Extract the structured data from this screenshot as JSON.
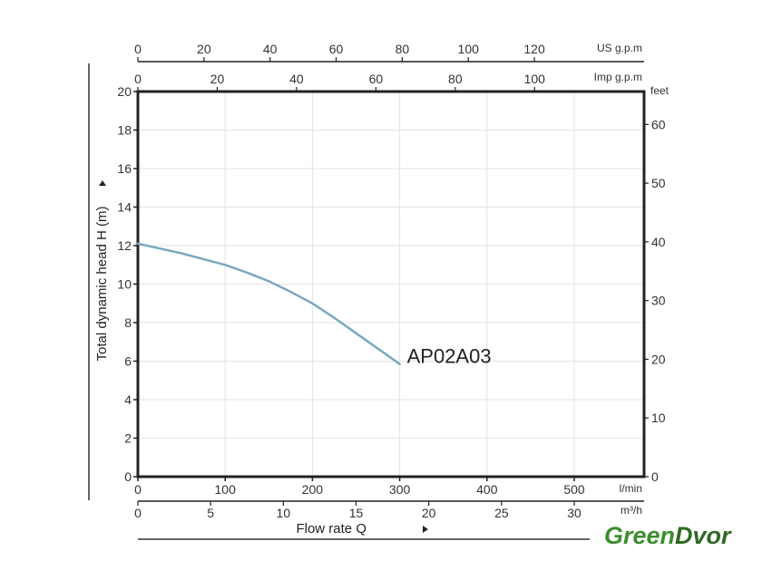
{
  "chart_data": {
    "type": "line",
    "title": "",
    "xlabel": "Flow rate Q",
    "ylabel": "Total dynamic head H (m)",
    "xlim": [
      0,
      580
    ],
    "ylim": [
      0,
      20
    ],
    "x_unit": "l/min",
    "x_ticks": [
      0,
      100,
      200,
      300,
      400,
      500
    ],
    "y_ticks": [
      0,
      2,
      4,
      6,
      8,
      10,
      12,
      14,
      16,
      18,
      20
    ],
    "grid": true,
    "series": [
      {
        "name": "AP02A03",
        "color": "#7aa9c0",
        "x": [
          0,
          25,
          50,
          75,
          100,
          125,
          150,
          175,
          200,
          225,
          250,
          275,
          300
        ],
        "y": [
          12.1,
          11.85,
          11.6,
          11.3,
          11.0,
          10.6,
          10.15,
          9.6,
          9.0,
          8.25,
          7.45,
          6.65,
          5.85
        ]
      }
    ],
    "secondary_axes": [
      {
        "position": "top-outer",
        "unit": "US g.p.m",
        "ticks": [
          0,
          20,
          40,
          60,
          80,
          100,
          120
        ],
        "range": [
          0,
          153.2
        ]
      },
      {
        "position": "top-inner",
        "unit": "Imp g.p.m",
        "ticks": [
          0,
          20,
          40,
          60,
          80,
          100
        ],
        "range": [
          0,
          127.6
        ]
      },
      {
        "position": "right",
        "unit": "feet",
        "ticks": [
          0,
          10,
          20,
          30,
          40,
          50,
          60
        ],
        "range": [
          0,
          65.6
        ]
      },
      {
        "position": "bottom-outer",
        "unit": "m³/h",
        "ticks": [
          0,
          5,
          10,
          15,
          20,
          25,
          30
        ],
        "range": [
          0,
          34.8
        ]
      }
    ]
  },
  "brand": {
    "text_green": "Green",
    "text_dvor": "Dvor",
    "color_green": "#3b8e2e",
    "color_dvor": "#2e6a24"
  }
}
